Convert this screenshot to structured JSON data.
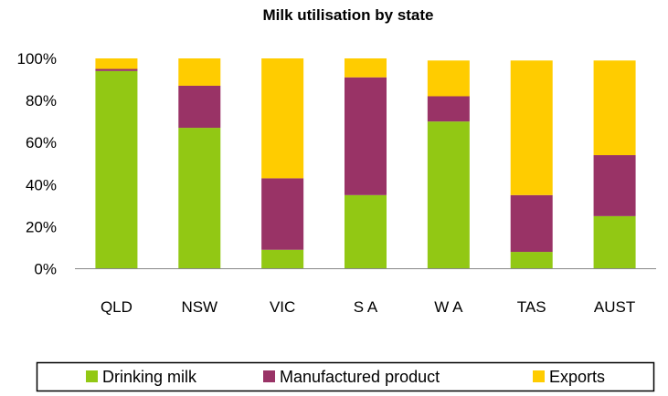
{
  "chart_data": {
    "type": "bar",
    "stacked": true,
    "title": "Milk utilisation by state",
    "xlabel": "",
    "ylabel": "",
    "categories": [
      "QLD",
      "NSW",
      "VIC",
      "S A",
      "W A",
      "TAS",
      "AUST"
    ],
    "yticks": [
      "0%",
      "20%",
      "40%",
      "60%",
      "80%",
      "100%"
    ],
    "ylim": [
      0,
      100
    ],
    "grid": false,
    "legend_position": "bottom",
    "series": [
      {
        "name": "Drinking milk",
        "color": "#92C814",
        "values": [
          94,
          67,
          9,
          35,
          70,
          8,
          25
        ]
      },
      {
        "name": "Manufactured product",
        "color": "#993366",
        "values": [
          1,
          20,
          34,
          56,
          12,
          27,
          29
        ]
      },
      {
        "name": "Exports",
        "color": "#FFCC00",
        "values": [
          5,
          13,
          57,
          9,
          17,
          64,
          45
        ]
      }
    ]
  }
}
